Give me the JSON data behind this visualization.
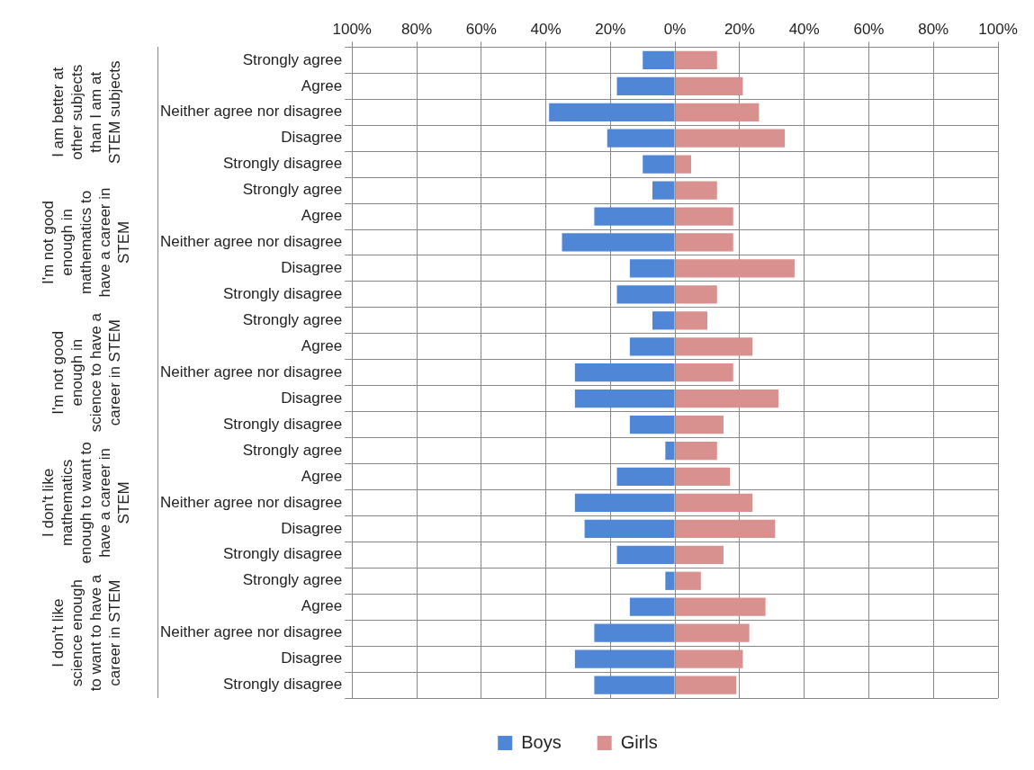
{
  "chart_data": {
    "type": "bar",
    "orientation": "horizontal",
    "stacked": true,
    "categories": [
      "Strongly agree",
      "Agree",
      "Neither agree nor disagree",
      "Disagree",
      "Strongly disagree",
      "Strongly agree",
      "Agree",
      "Neither agree nor disagree",
      "Disagree",
      "Strongly disagree",
      "Strongly agree",
      "Agree",
      "Neither agree nor disagree",
      "Disagree",
      "Strongly disagree",
      "Strongly agree",
      "Agree",
      "Neither agree nor disagree",
      "Disagree",
      "Strongly disagree",
      "Strongly agree",
      "Agree",
      "Neither agree nor disagree",
      "Disagree",
      "Strongly disagree"
    ],
    "series": [
      {
        "name": "Boys",
        "color": "#4f86d6",
        "values": [
          -10,
          -18,
          -39,
          -21,
          -10,
          -7,
          -25,
          -35,
          -14,
          -18,
          -7,
          -14,
          -31,
          -31,
          -14,
          -3,
          -18,
          -31,
          -28,
          -18,
          -3,
          -14,
          -25,
          -31,
          -25
        ]
      },
      {
        "name": "Girls",
        "color": "#d99190",
        "values": [
          13,
          21,
          26,
          34,
          5,
          13,
          18,
          18,
          37,
          13,
          10,
          24,
          18,
          32,
          15,
          13,
          17,
          24,
          31,
          15,
          8,
          28,
          23,
          21,
          19
        ]
      }
    ],
    "xlim": [
      -100,
      100
    ],
    "xticks": [
      {
        "value": -100,
        "label": "100%"
      },
      {
        "value": -80,
        "label": "80%"
      },
      {
        "value": -60,
        "label": "60%"
      },
      {
        "value": -40,
        "label": "40%"
      },
      {
        "value": -20,
        "label": "20%"
      },
      {
        "value": 0,
        "label": "0%"
      },
      {
        "value": 20,
        "label": "20%"
      },
      {
        "value": 40,
        "label": "40%"
      },
      {
        "value": 60,
        "label": "60%"
      },
      {
        "value": 80,
        "label": "80%"
      },
      {
        "value": 100,
        "label": "100%"
      }
    ],
    "annotations": [
      "I am better at other subjects than I am at STEM subjects",
      "I'm not good enough in mathematics to have a career in STEM",
      "I'm not good enough in science to have a career in STEM",
      "I don't like mathematics enough to want to have a career in STEM",
      "I don't like science enough to want to have a career in STEM"
    ],
    "grid": true,
    "legend": "bottom"
  }
}
